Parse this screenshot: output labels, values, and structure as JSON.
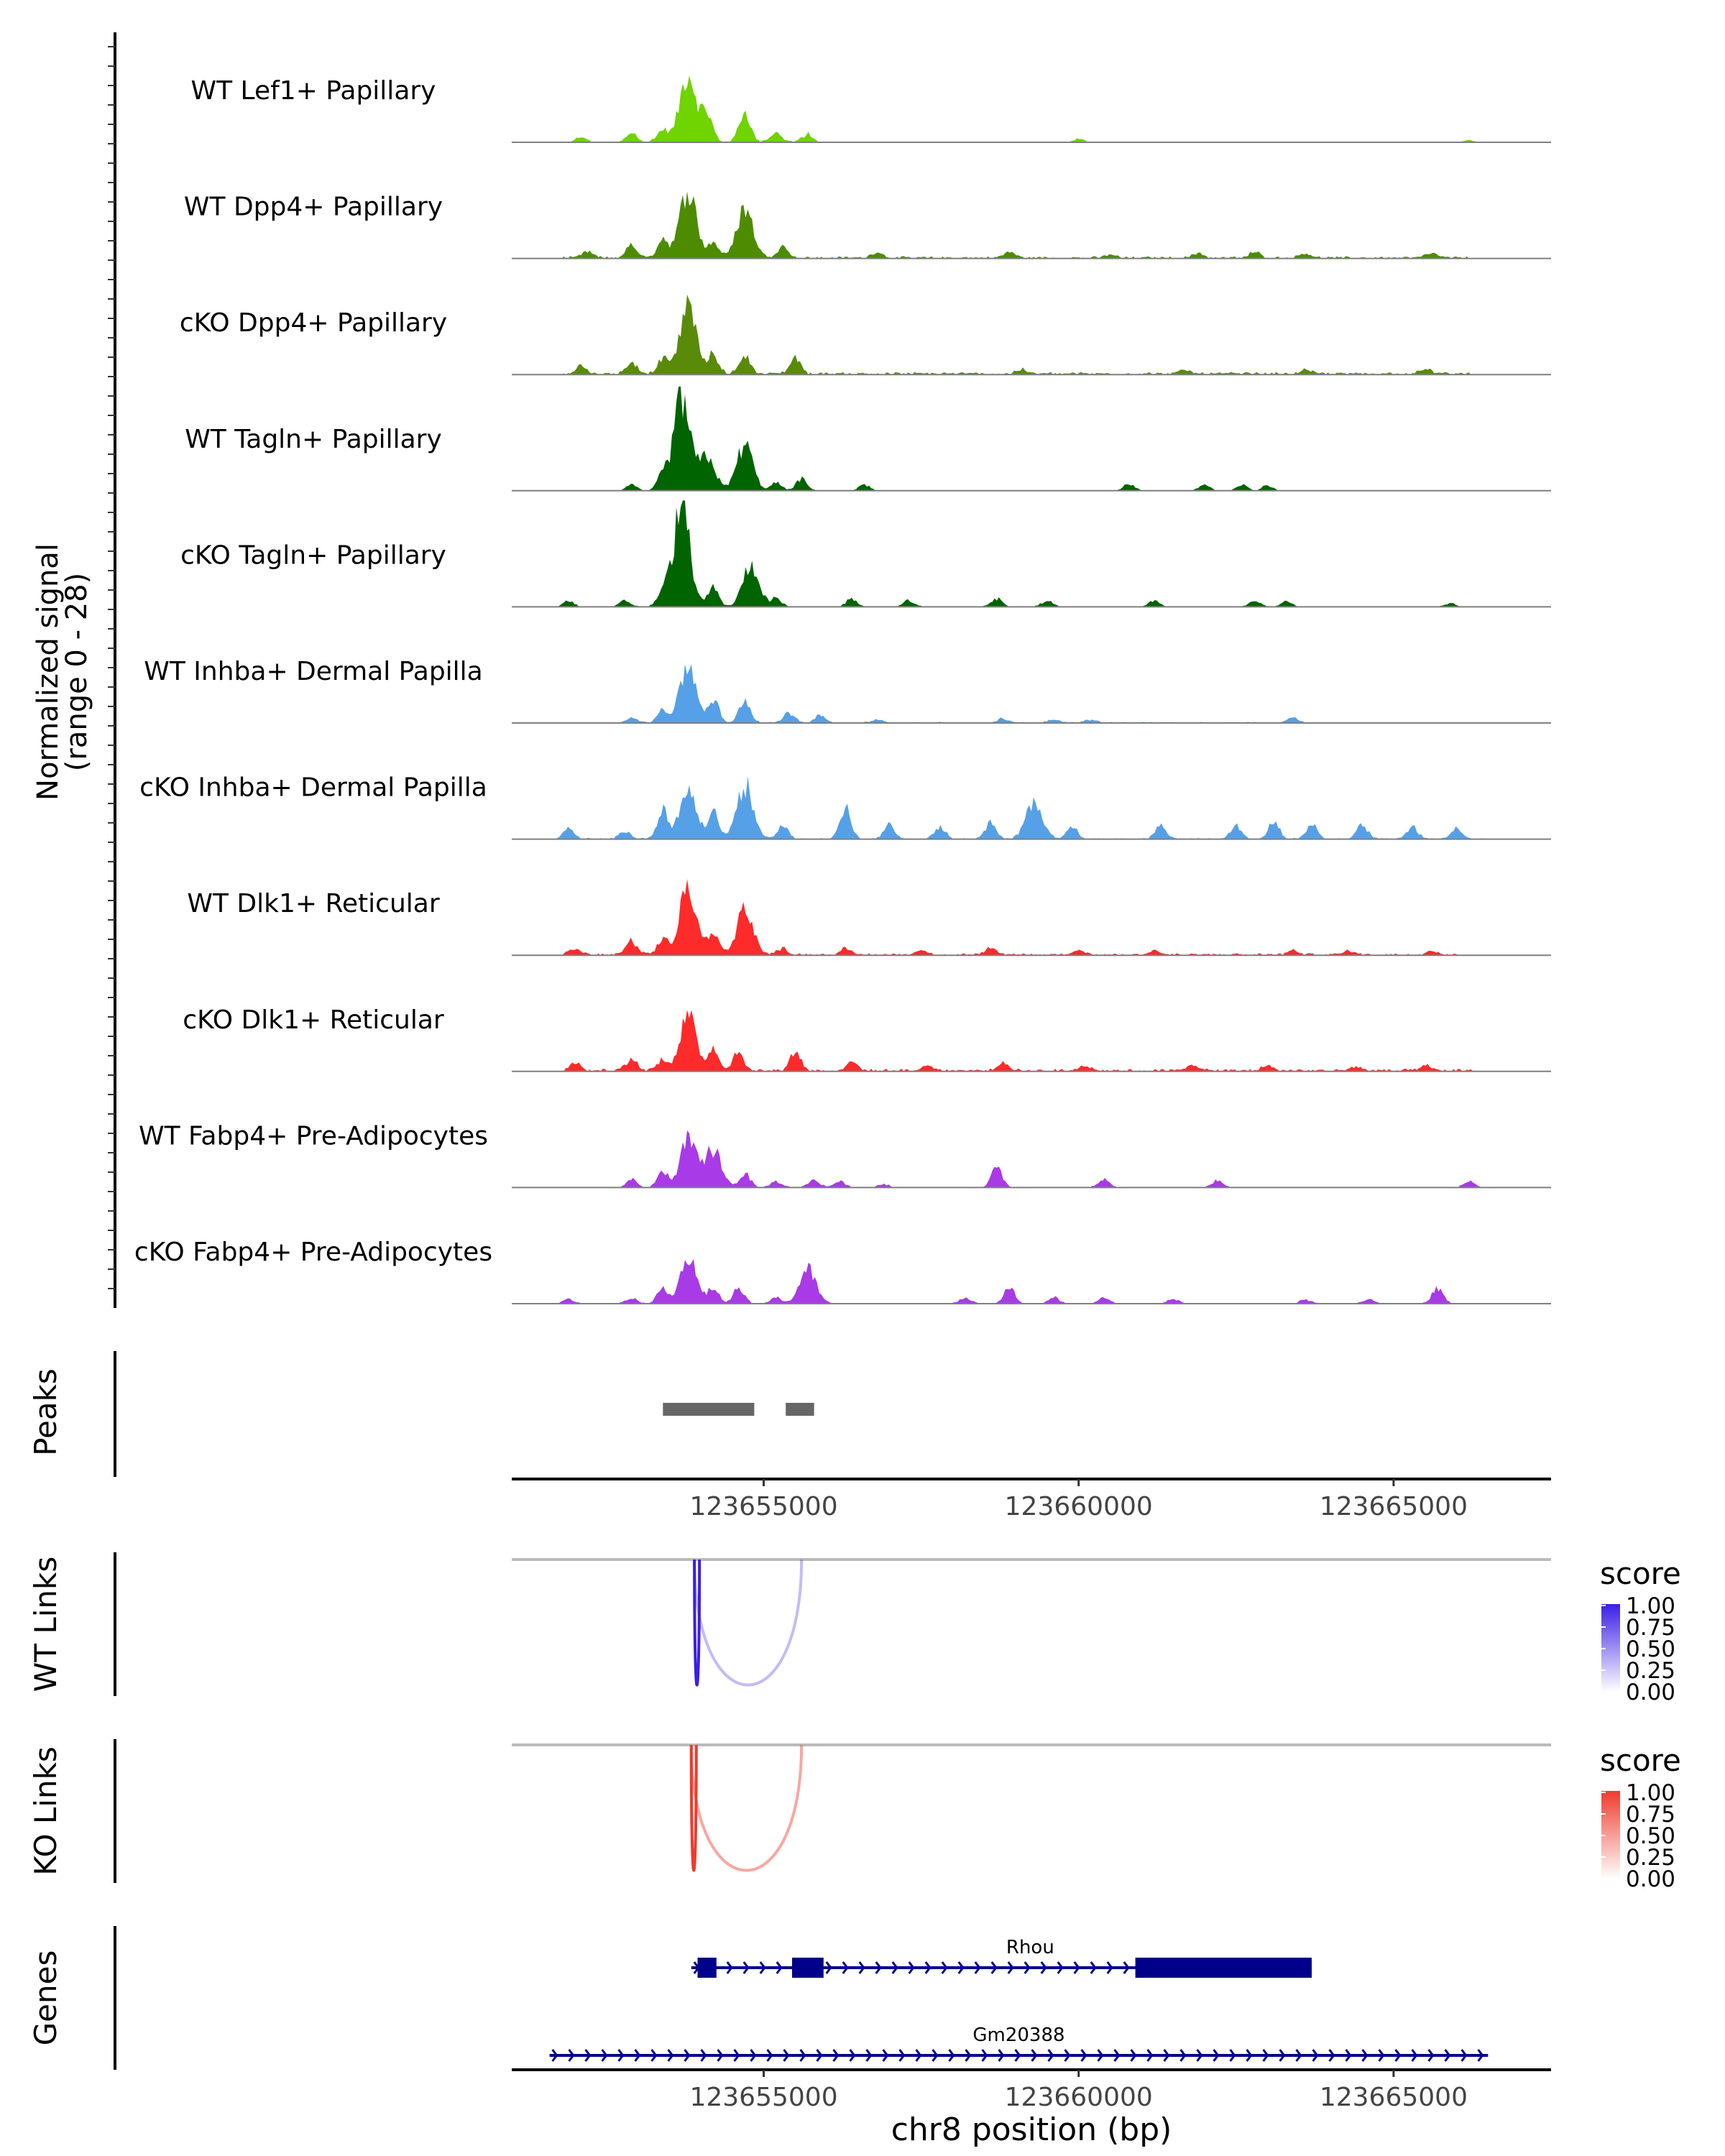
{
  "chart_data": {
    "type": "area",
    "title": "",
    "xlabel": "chr8 position (bp)",
    "x_range": [
      123651000,
      123667500
    ],
    "x_ticks": [
      123655000,
      123660000,
      123665000
    ],
    "x_tick_labels": [
      "123655000",
      "123660000",
      "123665000"
    ],
    "coverage_ylabel_line1": "Normalized signal",
    "coverage_ylabel_line2": "(range 0 - 28)",
    "y_range": [
      0,
      28
    ],
    "tracks": [
      {
        "name": "WT Lef1+ Papillary",
        "color": "#6fd400",
        "peaks": [
          [
            123652100,
            1.5
          ],
          [
            123652900,
            2.5
          ],
          [
            123653400,
            3
          ],
          [
            123653800,
            18
          ],
          [
            123654100,
            7
          ],
          [
            123654700,
            8
          ],
          [
            123655200,
            2.2
          ],
          [
            123655700,
            1.8
          ],
          [
            123660000,
            0.9
          ],
          [
            123666200,
            0.6
          ]
        ],
        "noise": 0.5,
        "span": [
          123653000,
          123655800
        ]
      },
      {
        "name": "WT Dpp4+ Papillary",
        "color": "#4d8c00",
        "peaks": [
          [
            123652200,
            1.5
          ],
          [
            123652900,
            3.2
          ],
          [
            123653400,
            5
          ],
          [
            123653800,
            18
          ],
          [
            123654200,
            4
          ],
          [
            123654700,
            13
          ],
          [
            123655300,
            3
          ],
          [
            123656800,
            1.5
          ],
          [
            123658900,
            1.5
          ],
          [
            123660500,
            0.8
          ],
          [
            123661900,
            1.2
          ],
          [
            123662800,
            1.5
          ],
          [
            123663600,
            1.2
          ],
          [
            123665600,
            1.2
          ]
        ],
        "noise": 0.5,
        "span": [
          123651800,
          123666300
        ]
      },
      {
        "name": "cKO Dpp4+ Papillary",
        "color": "#5a8a0a",
        "peaks": [
          [
            123652100,
            2
          ],
          [
            123652900,
            3
          ],
          [
            123653400,
            4
          ],
          [
            123653800,
            18
          ],
          [
            123654200,
            5
          ],
          [
            123654700,
            5
          ],
          [
            123655500,
            4
          ],
          [
            123659100,
            1
          ],
          [
            123661700,
            1
          ],
          [
            123663600,
            1
          ],
          [
            123665500,
            1.3
          ]
        ],
        "noise": 0.6,
        "span": [
          123651800,
          123666300
        ]
      },
      {
        "name": "WT Tagln+ Papillary",
        "color": "#006400",
        "peaks": [
          [
            123652900,
            1.5
          ],
          [
            123653400,
            4
          ],
          [
            123653700,
            24
          ],
          [
            123654100,
            9
          ],
          [
            123654700,
            12
          ],
          [
            123655200,
            2
          ],
          [
            123655600,
            3
          ],
          [
            123656600,
            1.5
          ],
          [
            123660800,
            1.8
          ],
          [
            123662000,
            1.6
          ],
          [
            123662600,
            1.4
          ],
          [
            123663000,
            1.4
          ]
        ],
        "noise": 0.1,
        "span": [
          123653000,
          123663000
        ]
      },
      {
        "name": "cKO Tagln+ Papillary",
        "color": "#006400",
        "peaks": [
          [
            123651900,
            1.5
          ],
          [
            123652800,
            1.5
          ],
          [
            123653400,
            4
          ],
          [
            123653700,
            27
          ],
          [
            123654200,
            5
          ],
          [
            123654800,
            11
          ],
          [
            123655200,
            2
          ],
          [
            123656400,
            2
          ],
          [
            123657300,
            1.5
          ],
          [
            123658700,
            2
          ],
          [
            123659500,
            1.5
          ],
          [
            123661200,
            1.5
          ],
          [
            123662800,
            1.5
          ],
          [
            123663300,
            1.5
          ],
          [
            123665900,
            0.8
          ]
        ],
        "noise": 0.2,
        "span": [
          123651800,
          123666100
        ]
      },
      {
        "name": "WT Inhba+ Dermal Papilla",
        "color": "#56a0e8",
        "peaks": [
          [
            123652900,
            1.5
          ],
          [
            123653400,
            3.5
          ],
          [
            123653800,
            15
          ],
          [
            123654200,
            6
          ],
          [
            123654700,
            6
          ],
          [
            123655400,
            2.5
          ],
          [
            123655900,
            2
          ],
          [
            123656800,
            0.8
          ],
          [
            123658800,
            1
          ],
          [
            123659600,
            0.8
          ],
          [
            123660200,
            0.8
          ],
          [
            123663400,
            1.2
          ]
        ],
        "noise": 0.3,
        "span": [
          123652800,
          123663600
        ]
      },
      {
        "name": "cKO Inhba+ Dermal Papilla",
        "color": "#56a0e8",
        "peaks": [
          [
            123651900,
            2.5
          ],
          [
            123652800,
            2
          ],
          [
            123653400,
            8
          ],
          [
            123653800,
            13
          ],
          [
            123654200,
            7
          ],
          [
            123654700,
            14
          ],
          [
            123655300,
            3.5
          ],
          [
            123656300,
            8
          ],
          [
            123657000,
            3.5
          ],
          [
            123657800,
            3
          ],
          [
            123658600,
            4
          ],
          [
            123659300,
            10
          ],
          [
            123659900,
            3
          ],
          [
            123661300,
            3.5
          ],
          [
            123662500,
            3.5
          ],
          [
            123663100,
            4.5
          ],
          [
            123663700,
            4
          ],
          [
            123664500,
            3.5
          ],
          [
            123665300,
            3
          ],
          [
            123666000,
            3
          ]
        ],
        "noise": 0.3,
        "span": [
          123651800,
          123666400
        ]
      },
      {
        "name": "WT Dlk1+ Reticular",
        "color": "#ff2a2a",
        "peaks": [
          [
            123652000,
            1.5
          ],
          [
            123652900,
            3.5
          ],
          [
            123653400,
            4
          ],
          [
            123653800,
            18
          ],
          [
            123654200,
            6
          ],
          [
            123654700,
            12
          ],
          [
            123655300,
            1.5
          ],
          [
            123656300,
            1.5
          ],
          [
            123657500,
            1.2
          ],
          [
            123658600,
            1.5
          ],
          [
            123660000,
            1.2
          ],
          [
            123661200,
            1
          ],
          [
            123663400,
            1
          ],
          [
            123664300,
            1
          ],
          [
            123665600,
            1.2
          ]
        ],
        "noise": 0.5,
        "span": [
          123651800,
          123666100
        ]
      },
      {
        "name": "cKO Dlk1+ Reticular",
        "color": "#ff2a2a",
        "peaks": [
          [
            123652000,
            2
          ],
          [
            123652900,
            3
          ],
          [
            123653400,
            3
          ],
          [
            123653800,
            14
          ],
          [
            123654200,
            6
          ],
          [
            123654600,
            5
          ],
          [
            123655500,
            5
          ],
          [
            123656400,
            2
          ],
          [
            123657600,
            1.5
          ],
          [
            123658800,
            1.8
          ],
          [
            123660100,
            1.5
          ],
          [
            123661800,
            1.5
          ],
          [
            123663000,
            1.2
          ],
          [
            123664400,
            1
          ],
          [
            123665500,
            1.2
          ]
        ],
        "noise": 0.6,
        "span": [
          123651800,
          123666300
        ]
      },
      {
        "name": "WT Fabp4+ Pre-Adipocytes",
        "color": "#a93ae8",
        "peaks": [
          [
            123652900,
            2
          ],
          [
            123653400,
            4
          ],
          [
            123653800,
            12
          ],
          [
            123654200,
            10
          ],
          [
            123654700,
            3.5
          ],
          [
            123655200,
            1.5
          ],
          [
            123655800,
            2
          ],
          [
            123656200,
            1.5
          ],
          [
            123656900,
            0.8
          ],
          [
            123658700,
            5
          ],
          [
            123660400,
            2
          ],
          [
            123662200,
            1.7
          ],
          [
            123666200,
            1.5
          ]
        ],
        "noise": 0.2,
        "span": [
          123652900,
          123666300
        ]
      },
      {
        "name": "cKO Fabp4+ Pre-Adipocytes",
        "color": "#a93ae8",
        "peaks": [
          [
            123651900,
            1.2
          ],
          [
            123652900,
            1.5
          ],
          [
            123653400,
            4
          ],
          [
            123653800,
            12
          ],
          [
            123654200,
            4
          ],
          [
            123654600,
            4
          ],
          [
            123655200,
            1.5
          ],
          [
            123655700,
            9
          ],
          [
            123658200,
            1.5
          ],
          [
            123658900,
            4
          ],
          [
            123659600,
            1.5
          ],
          [
            123660400,
            1.5
          ],
          [
            123661500,
            1.2
          ],
          [
            123663600,
            1
          ],
          [
            123664600,
            1.2
          ],
          [
            123665700,
            4
          ]
        ],
        "noise": 0.2,
        "span": [
          123651800,
          123665900
        ]
      }
    ],
    "peaks_track": {
      "label": "Peaks",
      "color": "#666666",
      "regions": [
        [
          123653400,
          123654850
        ],
        [
          123655350,
          123655800
        ]
      ]
    },
    "links_tracks": [
      {
        "label": "WT Links",
        "legend_title": "score",
        "color": "#3a1fe6",
        "legend_ticks": [
          "1.00",
          "0.75",
          "0.50",
          "0.25",
          "0.00"
        ],
        "links": [
          {
            "start": 123653900,
            "end": 123653980,
            "score": 1.0
          },
          {
            "start": 123653900,
            "end": 123655600,
            "score": 0.25
          }
        ]
      },
      {
        "label": "KO Links",
        "legend_title": "score",
        "color": "#ef3b2c",
        "legend_ticks": [
          "1.00",
          "0.75",
          "0.50",
          "0.25",
          "0.00"
        ],
        "links": [
          {
            "start": 123653850,
            "end": 123653930,
            "score": 1.0
          },
          {
            "start": 123653850,
            "end": 123655600,
            "score": 0.45
          }
        ]
      }
    ],
    "genes_track": {
      "label": "Genes",
      "color": "#00008b",
      "genes": [
        {
          "name": "Rhou",
          "start": 123653850,
          "end": 123663700,
          "strand": "+",
          "exons": [
            [
              123653950,
              123654250
            ],
            [
              123655450,
              123655950
            ],
            [
              123660900,
              123663700
            ]
          ]
        },
        {
          "name": "Gm20388",
          "start": 123651600,
          "end": 123666500,
          "strand": "+",
          "exons": []
        }
      ]
    }
  }
}
